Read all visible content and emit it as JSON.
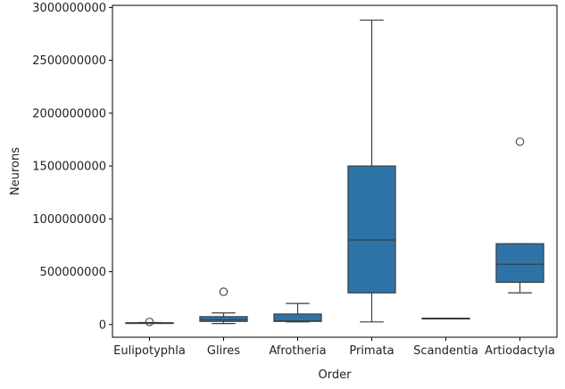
{
  "chart_data": {
    "type": "box",
    "xlabel": "Order",
    "ylabel": "Neurons",
    "ylim": [
      -120000000,
      3020000000
    ],
    "yticks": [
      0,
      500000000,
      1000000000,
      1500000000,
      2000000000,
      2500000000,
      3000000000
    ],
    "ytick_labels": [
      "0",
      "500000000",
      "1000000000",
      "1500000000",
      "2000000000",
      "2500000000",
      "3000000000"
    ],
    "box_color": "#2e73a8",
    "line_color": "#3d3d3d",
    "categories": [
      "Eulipotyphla",
      "Glires",
      "Afrotheria",
      "Primata",
      "Scandentia",
      "Artiodactyla"
    ],
    "boxes": [
      {
        "category": "Eulipotyphla",
        "whisker_low": 12000000,
        "q1": 13000000,
        "median": 15000000,
        "q3": 17000000,
        "whisker_high": 19000000,
        "outliers": [
          25000000
        ]
      },
      {
        "category": "Glires",
        "whisker_low": 10000000,
        "q1": 30000000,
        "median": 45000000,
        "q3": 75000000,
        "whisker_high": 110000000,
        "outliers": [
          310000000
        ]
      },
      {
        "category": "Afrotheria",
        "whisker_low": 25000000,
        "q1": 30000000,
        "median": 35000000,
        "q3": 100000000,
        "whisker_high": 200000000,
        "outliers": []
      },
      {
        "category": "Primata",
        "whisker_low": 25000000,
        "q1": 300000000,
        "median": 800000000,
        "q3": 1500000000,
        "whisker_high": 2880000000,
        "outliers": []
      },
      {
        "category": "Scandentia",
        "whisker_low": 60000000,
        "q1": 60000000,
        "median": 60000000,
        "q3": 60000000,
        "whisker_high": 60000000,
        "outliers": []
      },
      {
        "category": "Artiodactyla",
        "whisker_low": 300000000,
        "q1": 400000000,
        "median": 570000000,
        "q3": 765000000,
        "whisker_high": 765000000,
        "outliers": [
          1730000000
        ]
      }
    ]
  }
}
